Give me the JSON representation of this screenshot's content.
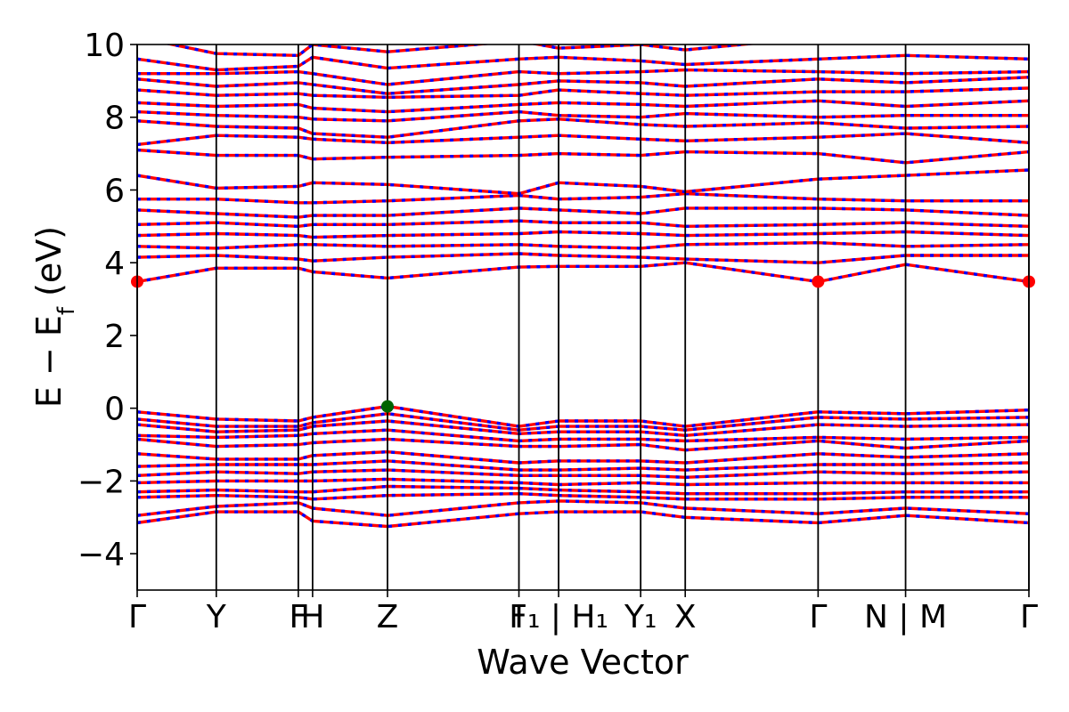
{
  "chart_data": {
    "type": "line",
    "title": "",
    "xlabel": "Wave Vector",
    "ylabel": "E − E_f (eV)",
    "ylabel_parts": {
      "main": "E − E",
      "sub": "f",
      "tail": " (eV)"
    },
    "ylim": [
      -5,
      10
    ],
    "yticks": [
      -4,
      -2,
      0,
      2,
      4,
      6,
      8,
      10
    ],
    "ytick_labels": [
      "−4",
      "−2",
      "0",
      "2",
      "4",
      "6",
      "8",
      "10"
    ],
    "kpoints": [
      {
        "label": "Γ",
        "x": 0.0
      },
      {
        "label": "Y",
        "x": 0.0887
      },
      {
        "label": "F",
        "x": 0.1807
      },
      {
        "label": "H",
        "x": 0.1967
      },
      {
        "label": "Z",
        "x": 0.2807
      },
      {
        "label": "I",
        "x": 0.4281
      },
      {
        "label": "F₁ | H₁",
        "x": 0.4726
      },
      {
        "label": "Y₁",
        "x": 0.5646
      },
      {
        "label": "X",
        "x": 0.6146
      },
      {
        "label": "Γ",
        "x": 0.7636
      },
      {
        "label": "N | M",
        "x": 0.8617
      },
      {
        "label": "Γ",
        "x": 1.0
      }
    ],
    "xtick_labels": [
      {
        "text": "Γ",
        "x": 0.0
      },
      {
        "text": "Y",
        "x": 0.0887
      },
      {
        "text": "F",
        "x": 0.1807
      },
      {
        "text": "H",
        "x": 0.1967
      },
      {
        "text": "Z",
        "x": 0.2807
      },
      {
        "text": "I",
        "x": 0.4281
      },
      {
        "text": "F₁ | H₁",
        "x": 0.4726
      },
      {
        "text": "Y₁",
        "x": 0.5646
      },
      {
        "text": "X",
        "x": 0.6146
      },
      {
        "text": "Γ",
        "x": 0.7636
      },
      {
        "text": "N | M",
        "x": 0.8617
      },
      {
        "text": "Γ",
        "x": 1.0
      }
    ],
    "series_styles": [
      {
        "role": "spin-up",
        "color": "#ff0000",
        "style": "solid"
      },
      {
        "role": "spin-down",
        "color": "#0000ff",
        "style": "dashed"
      }
    ],
    "valence_band_maximum": {
      "x": 0.2807,
      "y": 0.05,
      "color": "#006400"
    },
    "conduction_band_minimum": [
      {
        "x": 0.0,
        "y": 3.48,
        "color": "#ff0000"
      },
      {
        "x": 0.7636,
        "y": 3.48,
        "color": "#ff0000"
      },
      {
        "x": 1.0,
        "y": 3.48,
        "color": "#ff0000"
      }
    ],
    "bands": [
      {
        "x": [
          0.0,
          0.0887,
          0.1807,
          0.1967,
          0.2807,
          0.4281,
          0.4726,
          0.5646,
          0.6146,
          0.7636,
          0.8617,
          1.0
        ],
        "y": [
          -3.15,
          -2.85,
          -2.85,
          -3.1,
          -3.25,
          -2.9,
          -2.85,
          -2.85,
          -3.0,
          -3.15,
          -2.95,
          -3.15
        ]
      },
      {
        "x": [
          0.0,
          0.0887,
          0.1807,
          0.1967,
          0.2807,
          0.4281,
          0.4726,
          0.5646,
          0.6146,
          0.7636,
          0.8617,
          1.0
        ],
        "y": [
          -2.95,
          -2.7,
          -2.6,
          -2.75,
          -2.95,
          -2.6,
          -2.55,
          -2.6,
          -2.75,
          -2.9,
          -2.75,
          -2.9
        ]
      },
      {
        "x": [
          0.0,
          0.0887,
          0.1807,
          0.1967,
          0.2807,
          0.4281,
          0.4726,
          0.5646,
          0.6146,
          0.7636,
          0.8617,
          1.0
        ],
        "y": [
          -2.45,
          -2.4,
          -2.45,
          -2.5,
          -2.4,
          -2.35,
          -2.4,
          -2.45,
          -2.5,
          -2.5,
          -2.45,
          -2.45
        ]
      },
      {
        "x": [
          0.0,
          0.0887,
          0.1807,
          0.1967,
          0.2807,
          0.4281,
          0.4726,
          0.5646,
          0.6146,
          0.7636,
          0.8617,
          1.0
        ],
        "y": [
          -2.3,
          -2.25,
          -2.3,
          -2.3,
          -2.15,
          -2.2,
          -2.25,
          -2.3,
          -2.35,
          -2.35,
          -2.3,
          -2.3
        ]
      },
      {
        "x": [
          0.0,
          0.0887,
          0.1807,
          0.1967,
          0.2807,
          0.4281,
          0.4726,
          0.5646,
          0.6146,
          0.7636,
          0.8617,
          1.0
        ],
        "y": [
          -2.05,
          -2.0,
          -2.0,
          -2.0,
          -1.95,
          -2.05,
          -2.1,
          -2.05,
          -2.1,
          -2.05,
          -2.05,
          -2.05
        ]
      },
      {
        "x": [
          0.0,
          0.0887,
          0.1807,
          0.1967,
          0.2807,
          0.4281,
          0.4726,
          0.5646,
          0.6146,
          0.7636,
          0.8617,
          1.0
        ],
        "y": [
          -1.85,
          -1.75,
          -1.8,
          -1.75,
          -1.7,
          -1.85,
          -1.85,
          -1.85,
          -1.9,
          -1.75,
          -1.8,
          -1.75
        ]
      },
      {
        "x": [
          0.0,
          0.0887,
          0.1807,
          0.1967,
          0.2807,
          0.4281,
          0.4726,
          0.5646,
          0.6146,
          0.7636,
          0.8617,
          1.0
        ],
        "y": [
          -1.6,
          -1.55,
          -1.55,
          -1.55,
          -1.45,
          -1.7,
          -1.7,
          -1.65,
          -1.7,
          -1.55,
          -1.55,
          -1.5
        ]
      },
      {
        "x": [
          0.0,
          0.0887,
          0.1807,
          0.1967,
          0.2807,
          0.4281,
          0.4726,
          0.5646,
          0.6146,
          0.7636,
          0.8617,
          1.0
        ],
        "y": [
          -1.25,
          -1.4,
          -1.4,
          -1.3,
          -1.2,
          -1.5,
          -1.45,
          -1.45,
          -1.5,
          -1.25,
          -1.35,
          -1.25
        ]
      },
      {
        "x": [
          0.0,
          0.0887,
          0.1807,
          0.1967,
          0.2807,
          0.4281,
          0.4726,
          0.5646,
          0.6146,
          0.7636,
          0.8617,
          1.0
        ],
        "y": [
          -0.85,
          -1.05,
          -1.0,
          -0.95,
          -0.85,
          -1.05,
          -1.05,
          -1.0,
          -1.15,
          -0.9,
          -1.1,
          -0.9
        ]
      },
      {
        "x": [
          0.0,
          0.0887,
          0.1807,
          0.1967,
          0.2807,
          0.4281,
          0.4726,
          0.5646,
          0.6146,
          0.7636,
          0.8617,
          1.0
        ],
        "y": [
          -0.75,
          -0.8,
          -0.75,
          -0.7,
          -0.6,
          -0.9,
          -0.85,
          -0.85,
          -0.9,
          -0.8,
          -0.85,
          -0.8
        ]
      },
      {
        "x": [
          0.0,
          0.0887,
          0.1807,
          0.1967,
          0.2807,
          0.4281,
          0.4726,
          0.5646,
          0.6146,
          0.7636,
          0.8617,
          1.0
        ],
        "y": [
          -0.45,
          -0.65,
          -0.6,
          -0.5,
          -0.35,
          -0.7,
          -0.65,
          -0.65,
          -0.75,
          -0.45,
          -0.5,
          -0.45
        ]
      },
      {
        "x": [
          0.0,
          0.0887,
          0.1807,
          0.1967,
          0.2807,
          0.4281,
          0.4726,
          0.5646,
          0.6146,
          0.7636,
          0.8617,
          1.0
        ],
        "y": [
          -0.3,
          -0.5,
          -0.5,
          -0.4,
          -0.15,
          -0.6,
          -0.5,
          -0.5,
          -0.6,
          -0.25,
          -0.3,
          -0.25
        ]
      },
      {
        "x": [
          0.0,
          0.0887,
          0.1807,
          0.1967,
          0.2807,
          0.4281,
          0.4726,
          0.5646,
          0.6146,
          0.7636,
          0.8617,
          1.0
        ],
        "y": [
          -0.1,
          -0.3,
          -0.35,
          -0.25,
          0.05,
          -0.5,
          -0.35,
          -0.35,
          -0.5,
          -0.1,
          -0.15,
          -0.05
        ]
      },
      {
        "x": [
          0.0,
          0.0887,
          0.1807,
          0.1967,
          0.2807,
          0.4281,
          0.4726,
          0.5646,
          0.6146,
          0.7636,
          0.8617,
          1.0
        ],
        "y": [
          3.48,
          3.85,
          3.85,
          3.75,
          3.58,
          3.88,
          3.9,
          3.9,
          4.0,
          3.48,
          3.95,
          3.48
        ]
      },
      {
        "x": [
          0.0,
          0.0887,
          0.1807,
          0.1967,
          0.2807,
          0.4281,
          0.4726,
          0.5646,
          0.6146,
          0.7636,
          0.8617,
          1.0
        ],
        "y": [
          4.15,
          4.2,
          4.1,
          4.05,
          4.15,
          4.25,
          4.2,
          4.15,
          4.1,
          4.0,
          4.2,
          4.2
        ]
      },
      {
        "x": [
          0.0,
          0.0887,
          0.1807,
          0.1967,
          0.2807,
          0.4281,
          0.4726,
          0.5646,
          0.6146,
          0.7636,
          0.8617,
          1.0
        ],
        "y": [
          4.45,
          4.4,
          4.5,
          4.5,
          4.45,
          4.5,
          4.45,
          4.4,
          4.5,
          4.55,
          4.45,
          4.5
        ]
      },
      {
        "x": [
          0.0,
          0.0887,
          0.1807,
          0.1967,
          0.2807,
          0.4281,
          0.4726,
          0.5646,
          0.6146,
          0.7636,
          0.8617,
          1.0
        ],
        "y": [
          4.75,
          4.8,
          4.75,
          4.7,
          4.75,
          4.8,
          4.85,
          4.8,
          4.75,
          4.8,
          4.85,
          4.75
        ]
      },
      {
        "x": [
          0.0,
          0.0887,
          0.1807,
          0.1967,
          0.2807,
          0.4281,
          0.4726,
          0.5646,
          0.6146,
          0.7636,
          0.8617,
          1.0
        ],
        "y": [
          5.05,
          5.1,
          5.0,
          5.05,
          5.05,
          5.15,
          5.1,
          5.1,
          5.0,
          5.05,
          5.1,
          5.0
        ]
      },
      {
        "x": [
          0.0,
          0.0887,
          0.1807,
          0.1967,
          0.2807,
          0.4281,
          0.4726,
          0.5646,
          0.6146,
          0.7636,
          0.8617,
          1.0
        ],
        "y": [
          5.45,
          5.35,
          5.25,
          5.3,
          5.3,
          5.5,
          5.45,
          5.35,
          5.5,
          5.5,
          5.45,
          5.3
        ]
      },
      {
        "x": [
          0.0,
          0.0887,
          0.1807,
          0.1967,
          0.2807,
          0.4281,
          0.4726,
          0.5646,
          0.6146,
          0.7636,
          0.8617,
          1.0
        ],
        "y": [
          5.75,
          5.75,
          5.65,
          5.65,
          5.7,
          5.85,
          5.75,
          5.8,
          5.9,
          5.75,
          5.7,
          5.7
        ]
      },
      {
        "x": [
          0.0,
          0.0887,
          0.1807,
          0.1967,
          0.2807,
          0.4281,
          0.4726,
          0.5646,
          0.6146,
          0.7636,
          0.8617,
          1.0
        ],
        "y": [
          6.4,
          6.05,
          6.1,
          6.2,
          6.15,
          5.9,
          6.2,
          6.1,
          5.95,
          6.3,
          6.4,
          6.55
        ]
      },
      {
        "x": [
          0.0,
          0.0887,
          0.1807,
          0.1967,
          0.2807,
          0.4281,
          0.4726,
          0.5646,
          0.6146,
          0.7636,
          0.8617,
          1.0
        ],
        "y": [
          7.1,
          6.95,
          6.95,
          6.85,
          6.9,
          6.95,
          7.0,
          6.95,
          7.05,
          7.0,
          6.75,
          7.05
        ]
      },
      {
        "x": [
          0.0,
          0.0887,
          0.1807,
          0.1967,
          0.2807,
          0.4281,
          0.4726,
          0.5646,
          0.6146,
          0.7636,
          0.8617,
          1.0
        ],
        "y": [
          7.25,
          7.5,
          7.45,
          7.4,
          7.3,
          7.45,
          7.5,
          7.4,
          7.35,
          7.45,
          7.55,
          7.3
        ]
      },
      {
        "x": [
          0.0,
          0.0887,
          0.1807,
          0.1967,
          0.2807,
          0.4281,
          0.4726,
          0.5646,
          0.6146,
          0.7636,
          0.8617,
          1.0
        ],
        "y": [
          7.9,
          7.75,
          7.7,
          7.55,
          7.45,
          7.9,
          7.95,
          7.8,
          7.75,
          7.85,
          7.7,
          7.75
        ]
      },
      {
        "x": [
          0.0,
          0.0887,
          0.1807,
          0.1967,
          0.2807,
          0.4281,
          0.4726,
          0.5646,
          0.6146,
          0.7636,
          0.8617,
          1.0
        ],
        "y": [
          8.15,
          8.05,
          8.0,
          7.95,
          7.9,
          8.15,
          8.05,
          8.0,
          8.1,
          8.0,
          8.05,
          8.05
        ]
      },
      {
        "x": [
          0.0,
          0.0887,
          0.1807,
          0.1967,
          0.2807,
          0.4281,
          0.4726,
          0.5646,
          0.6146,
          0.7636,
          0.8617,
          1.0
        ],
        "y": [
          8.4,
          8.3,
          8.35,
          8.25,
          8.15,
          8.35,
          8.4,
          8.35,
          8.3,
          8.45,
          8.3,
          8.45
        ]
      },
      {
        "x": [
          0.0,
          0.0887,
          0.1807,
          0.1967,
          0.2807,
          0.4281,
          0.4726,
          0.5646,
          0.6146,
          0.7636,
          0.8617,
          1.0
        ],
        "y": [
          8.75,
          8.6,
          8.65,
          8.6,
          8.55,
          8.6,
          8.75,
          8.65,
          8.6,
          8.7,
          8.7,
          8.8
        ]
      },
      {
        "x": [
          0.0,
          0.0887,
          0.1807,
          0.1967,
          0.2807,
          0.4281,
          0.4726,
          0.5646,
          0.6146,
          0.7636,
          0.8617,
          1.0
        ],
        "y": [
          9.05,
          8.85,
          8.95,
          8.9,
          8.65,
          8.9,
          9.0,
          8.95,
          8.85,
          9.05,
          8.95,
          9.1
        ]
      },
      {
        "x": [
          0.0,
          0.0887,
          0.1807,
          0.1967,
          0.2807,
          0.4281,
          0.4726,
          0.5646,
          0.6146,
          0.7636,
          0.8617,
          1.0
        ],
        "y": [
          9.2,
          9.2,
          9.25,
          9.2,
          8.9,
          9.25,
          9.2,
          9.25,
          9.3,
          9.25,
          9.2,
          9.25
        ]
      },
      {
        "x": [
          0.0,
          0.0887,
          0.1807,
          0.1967,
          0.2807,
          0.4281,
          0.4726,
          0.5646,
          0.6146,
          0.7636,
          0.8617,
          1.0
        ],
        "y": [
          9.6,
          9.3,
          9.4,
          9.65,
          9.35,
          9.6,
          9.65,
          9.55,
          9.45,
          9.6,
          9.7,
          9.6
        ]
      },
      {
        "x": [
          0.0,
          0.0887,
          0.1807,
          0.1967,
          0.2807,
          0.4281,
          0.4726,
          0.5646,
          0.6146,
          0.7636,
          0.8617,
          1.0
        ],
        "y": [
          10.2,
          9.75,
          9.7,
          10.0,
          9.8,
          10.1,
          9.9,
          10.0,
          9.85,
          10.2,
          10.3,
          10.2
        ]
      }
    ]
  }
}
